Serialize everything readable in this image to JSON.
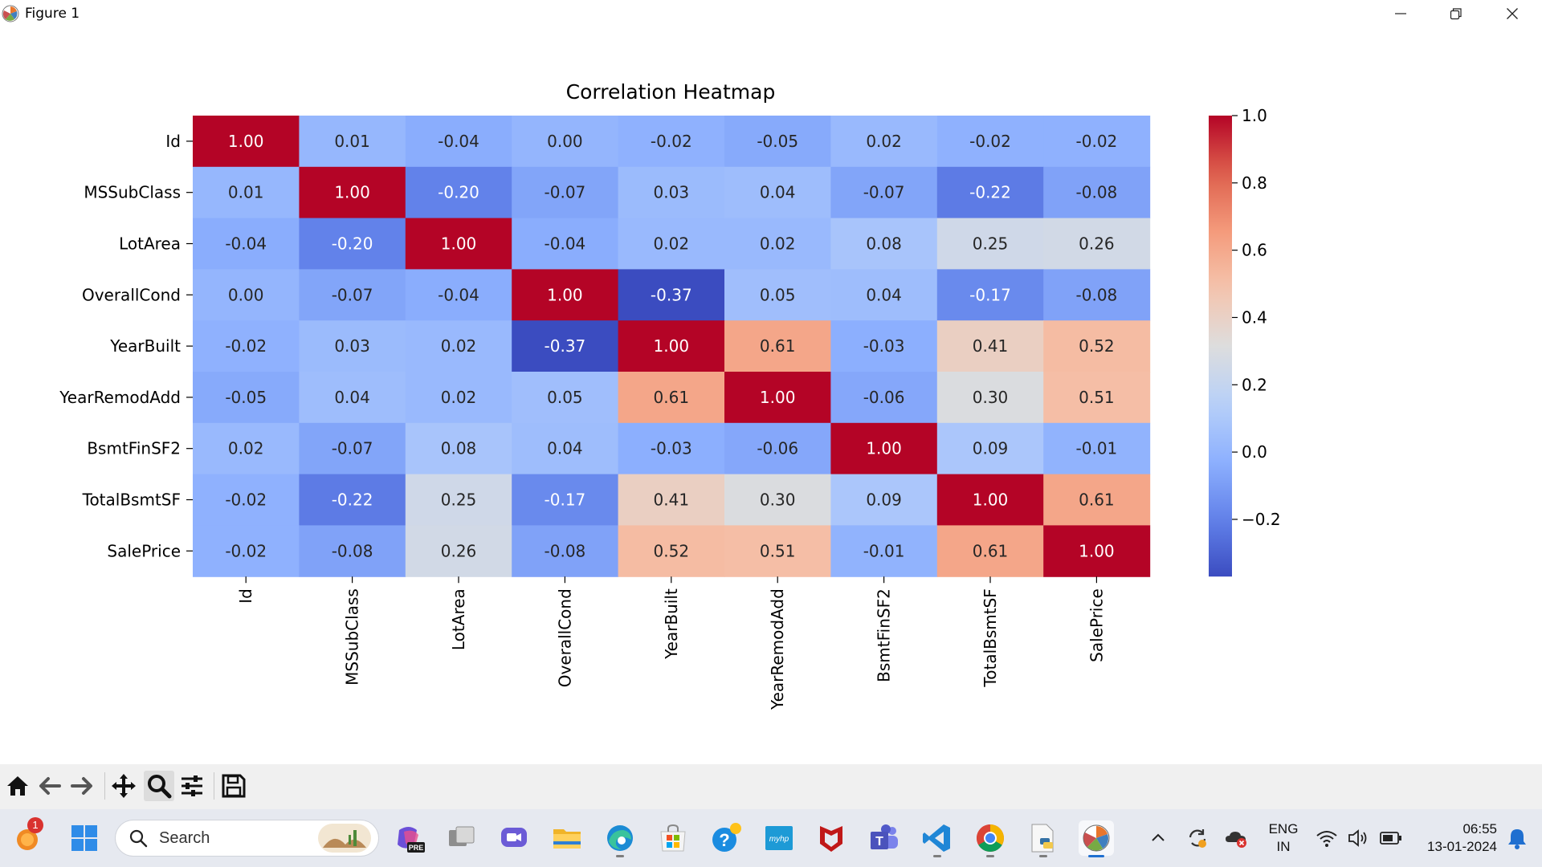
{
  "window": {
    "title": "Figure 1",
    "minimize_glyph": "—",
    "maximize_glyph": "❐",
    "close_glyph": "✕"
  },
  "chart_data": {
    "type": "heatmap",
    "title": "Correlation Heatmap",
    "xlabel": "",
    "ylabel": "",
    "labels": [
      "Id",
      "MSSubClass",
      "LotArea",
      "OverallCond",
      "YearBuilt",
      "YearRemodAdd",
      "BsmtFinSF2",
      "TotalBsmtSF",
      "SalePrice"
    ],
    "matrix": [
      [
        1.0,
        0.01,
        -0.04,
        -0.0,
        -0.02,
        -0.05,
        0.02,
        -0.02,
        -0.02
      ],
      [
        0.01,
        1.0,
        -0.2,
        -0.07,
        0.03,
        0.04,
        -0.07,
        -0.22,
        -0.08
      ],
      [
        -0.04,
        -0.2,
        1.0,
        -0.04,
        0.02,
        0.02,
        0.08,
        0.25,
        0.26
      ],
      [
        -0.0,
        -0.07,
        -0.04,
        1.0,
        -0.37,
        0.05,
        0.04,
        -0.17,
        -0.08
      ],
      [
        -0.02,
        0.03,
        0.02,
        -0.37,
        1.0,
        0.61,
        -0.03,
        0.41,
        0.52
      ],
      [
        -0.05,
        0.04,
        0.02,
        0.05,
        0.61,
        1.0,
        -0.06,
        0.3,
        0.51
      ],
      [
        0.02,
        -0.07,
        0.08,
        0.04,
        -0.03,
        -0.06,
        1.0,
        0.09,
        -0.01
      ],
      [
        -0.02,
        -0.22,
        0.25,
        -0.17,
        0.41,
        0.3,
        0.09,
        1.0,
        0.61
      ],
      [
        -0.02,
        -0.08,
        0.26,
        -0.08,
        0.52,
        0.51,
        -0.01,
        0.61,
        1.0
      ]
    ],
    "annotations_format": "0.00",
    "colormap": "coolwarm",
    "vmin": -0.37,
    "vmax": 1.0,
    "colorbar_ticks": [
      1.0,
      0.8,
      0.6,
      0.4,
      0.2,
      0.0,
      -0.2
    ],
    "colorbar_tick_labels": [
      "1.0",
      "0.8",
      "0.6",
      "0.4",
      "0.2",
      "0.0",
      "−0.2"
    ],
    "colorbar_location": "right",
    "x_tick_rotation": "vertical",
    "grid": false
  },
  "toolbar": {
    "tools": [
      "home-icon",
      "back-arrow-icon",
      "forward-arrow-icon",
      "pan-icon",
      "zoom-icon",
      "configure-subplots-icon",
      "save-icon"
    ],
    "active_tool": "zoom-icon"
  },
  "taskbar": {
    "weather_badge": "1",
    "search_placeholder": "Search",
    "apps": [
      "windows-start-icon",
      "copilot-pre-icon",
      "task-view-icon",
      "meet-icon",
      "file-explorer-icon",
      "edge-icon",
      "microsoft-store-icon",
      "get-help-icon",
      "myhp-icon",
      "mcafee-icon",
      "teams-icon",
      "vscode-icon",
      "chrome-icon",
      "python-file-icon",
      "matplotlib-figure-icon"
    ],
    "myhp_label": "myhp",
    "teams_label": "T",
    "pre_label": "PRE",
    "language_line1": "ENG",
    "language_line2": "IN",
    "time": "06:55",
    "date": "13-01-2024"
  },
  "colors": {
    "taskbar_bg": "#e6e9f0",
    "toolbar_bg": "#f0f0f0",
    "accent": "#1f6fd0"
  }
}
